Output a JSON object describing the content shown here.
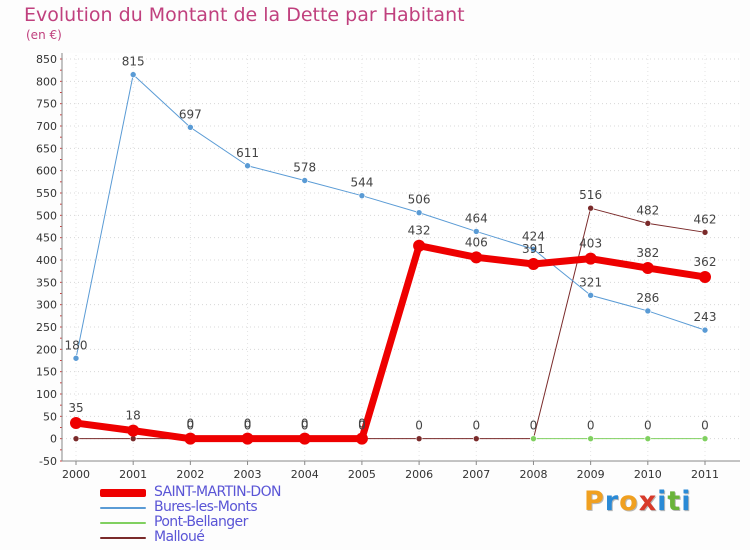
{
  "title": "Evolution du Montant de la Dette par Habitant",
  "subtitle": "(en €)",
  "brand": {
    "text": "Proxiti",
    "letters": [
      {
        "ch": "P",
        "color": "#f0a020"
      },
      {
        "ch": "r",
        "color": "#2a8ad6"
      },
      {
        "ch": "o",
        "color": "#f0a020"
      },
      {
        "ch": "x",
        "color": "#d83a2a"
      },
      {
        "ch": "i",
        "color": "#2a8ad6"
      },
      {
        "ch": "t",
        "color": "#6ab43a"
      },
      {
        "ch": "i",
        "color": "#2a8ad6"
      }
    ]
  },
  "chart_data": {
    "type": "line",
    "title": "Evolution du Montant de la Dette par Habitant",
    "ylabel": "(en €)",
    "xlabel": "",
    "x": [
      "2000",
      "2001",
      "2002",
      "2003",
      "2004",
      "2005",
      "2006",
      "2007",
      "2008",
      "2009",
      "2010",
      "2011"
    ],
    "ylim": [
      -50,
      850
    ],
    "yticks": [
      -50,
      0,
      50,
      100,
      150,
      200,
      250,
      300,
      350,
      400,
      450,
      500,
      550,
      600,
      650,
      700,
      750,
      800,
      850
    ],
    "grid": true,
    "legend_position": "bottom-left",
    "series": [
      {
        "name": "SAINT-MARTIN-DON",
        "color": "#ee0000",
        "width": 7,
        "values": [
          35,
          18,
          0,
          0,
          0,
          0,
          432,
          406,
          391,
          403,
          382,
          362
        ],
        "labels": [
          "35",
          "18",
          "0",
          "0",
          "0",
          "0",
          "432",
          "406",
          "391",
          "403",
          "382",
          "362"
        ]
      },
      {
        "name": "Bures-les-Monts",
        "color": "#5a9bd5",
        "width": 1,
        "values": [
          180,
          815,
          697,
          611,
          578,
          544,
          506,
          464,
          424,
          321,
          286,
          243
        ],
        "labels": [
          "180",
          "815",
          "697",
          "611",
          "578",
          "544",
          "506",
          "464",
          "424",
          "321",
          "286",
          "243"
        ]
      },
      {
        "name": "Pont-Bellanger",
        "color": "#80d060",
        "width": 1,
        "values": [
          null,
          null,
          null,
          null,
          null,
          null,
          null,
          null,
          0,
          0,
          0,
          0
        ],
        "labels": [
          null,
          null,
          null,
          null,
          null,
          null,
          null,
          null,
          null,
          "0",
          "0",
          "0"
        ]
      },
      {
        "name": "Malloué",
        "color": "#7a2a2a",
        "width": 1,
        "values": [
          0,
          0,
          0,
          0,
          0,
          0,
          0,
          0,
          0,
          516,
          482,
          462
        ],
        "labels": [
          null,
          null,
          "0",
          "0",
          "0",
          "0",
          "0",
          "0",
          "0",
          "516",
          "482",
          "462"
        ]
      }
    ]
  }
}
